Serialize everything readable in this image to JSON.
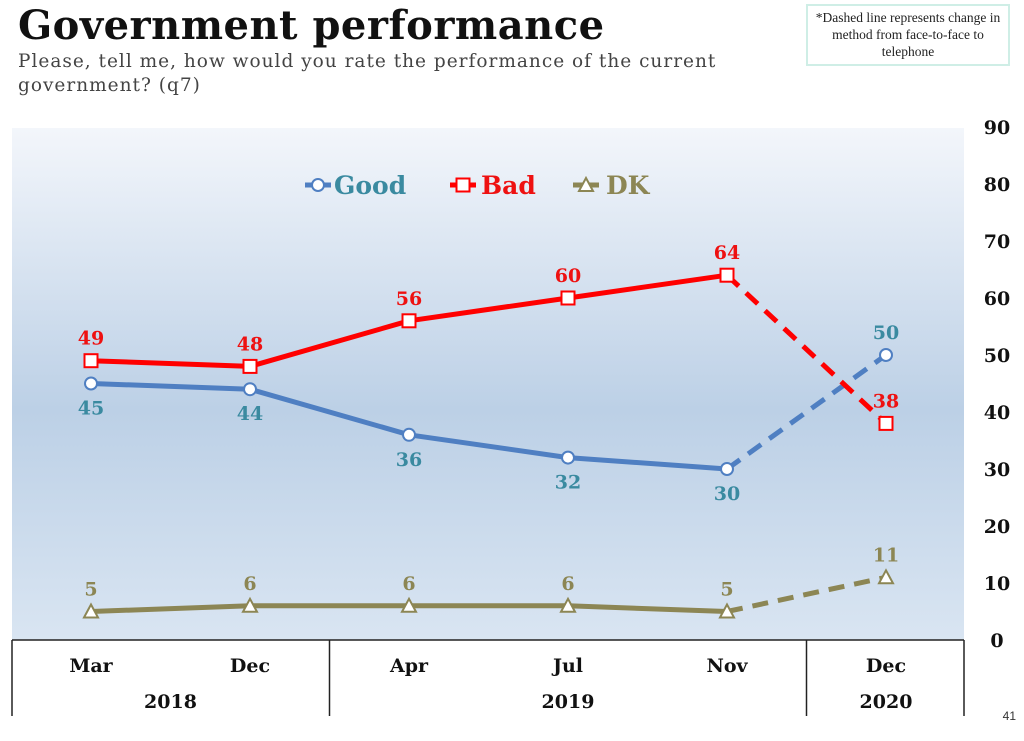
{
  "title": "Government performance",
  "subtitle": "Please, tell me, how would you rate the performance of the current government? (q7)",
  "note": "*Dashed line represents change in method from face-to-face to telephone",
  "page_number": "41",
  "chart_data": {
    "type": "line",
    "title": "Government performance",
    "categories": [
      "Mar",
      "Dec",
      "Apr",
      "Jul",
      "Nov",
      "Dec"
    ],
    "year_groups": [
      {
        "label": "2018",
        "start": 0,
        "end": 1
      },
      {
        "label": "2019",
        "start": 2,
        "end": 4
      },
      {
        "label": "2020",
        "start": 5,
        "end": 5
      }
    ],
    "ylim": [
      0,
      90
    ],
    "yticks": [
      "0",
      "10",
      "20",
      "30",
      "40",
      "50",
      "60",
      "70",
      "80",
      "90"
    ],
    "dashed_from_index": 4,
    "legend_position": "top-center",
    "series": [
      {
        "name": "Good",
        "values": [
          45,
          44,
          36,
          32,
          30,
          50
        ],
        "labels": [
          "45",
          "44",
          "36",
          "32",
          "30",
          "50"
        ],
        "color": "#4f7fc2",
        "label_color": "#3a8aa0",
        "marker": "circle",
        "label_pos": [
          "below",
          "below",
          "below",
          "below",
          "below",
          "above"
        ]
      },
      {
        "name": "Bad",
        "values": [
          49,
          48,
          56,
          60,
          64,
          38
        ],
        "labels": [
          "49",
          "48",
          "56",
          "60",
          "64",
          "38"
        ],
        "color": "#ff0000",
        "label_color": "#ee1111",
        "marker": "square",
        "label_pos": [
          "above",
          "above",
          "above",
          "above",
          "above",
          "above"
        ]
      },
      {
        "name": "DK",
        "values": [
          5,
          6,
          6,
          6,
          5,
          11
        ],
        "labels": [
          "5",
          "6",
          "6",
          "6",
          "5",
          "11"
        ],
        "color": "#8c8654",
        "label_color": "#8c8654",
        "marker": "triangle",
        "label_pos": [
          "above",
          "above",
          "above",
          "above",
          "above",
          "above"
        ]
      }
    ]
  }
}
